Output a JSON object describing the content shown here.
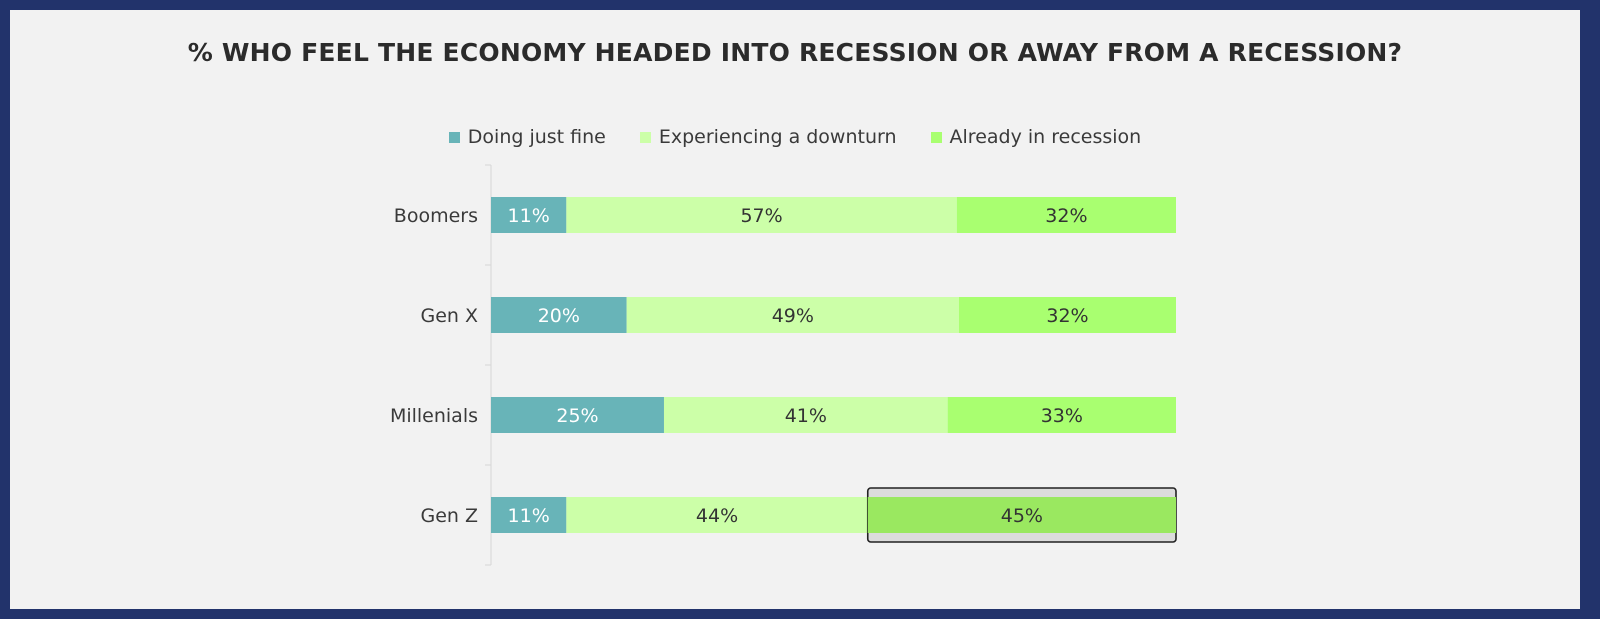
{
  "chart_data": {
    "type": "bar",
    "orientation": "horizontal",
    "stacked": true,
    "title": "% WHO FEEL THE ECONOMY HEADED INTO RECESSION OR AWAY FROM A RECESSION?",
    "categories": [
      "Boomers",
      "Gen X",
      "Millenials",
      "Gen Z"
    ],
    "series": [
      {
        "name": "Doing just fine",
        "color": "#68b4b8",
        "labelColor": "#ffffff",
        "values": [
          11,
          20,
          25,
          11
        ],
        "labels": [
          "11%",
          "20%",
          "25%",
          "11%"
        ]
      },
      {
        "name": "Experiencing a downturn",
        "color": "#ccffa8",
        "labelColor": "#333333",
        "values": [
          57,
          49,
          41,
          44
        ],
        "labels": [
          "57%",
          "49%",
          "41%",
          "44%"
        ]
      },
      {
        "name": "Already in recession",
        "color": "#a9ff70",
        "labelColor": "#333333",
        "values": [
          32,
          32,
          33,
          45
        ],
        "labels": [
          "32%",
          "32%",
          "33%",
          "45%"
        ]
      }
    ],
    "highlight": {
      "category": "Gen Z",
      "series": "Already in recession",
      "color": "#9ae860"
    },
    "legend_position": "top",
    "grid": false
  }
}
